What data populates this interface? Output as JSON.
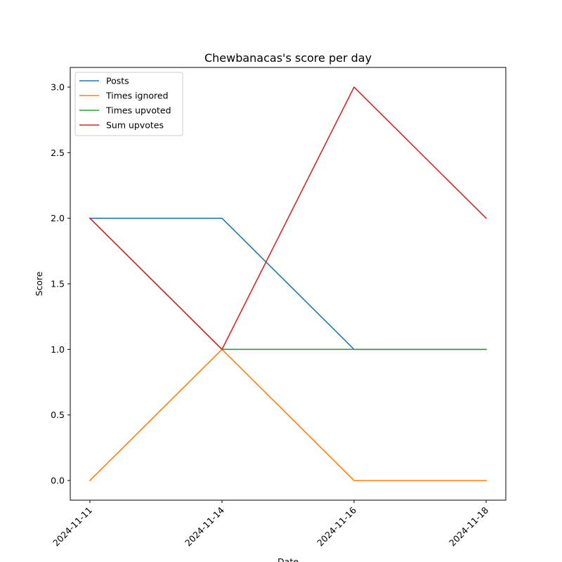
{
  "chart_data": {
    "type": "line",
    "title": "Chewbanacas's score per day",
    "xlabel": "Date",
    "ylabel": "Score",
    "categories": [
      "2024-11-11",
      "2024-11-14",
      "2024-11-16",
      "2024-11-18"
    ],
    "yticks": [
      "0.0",
      "0.5",
      "1.0",
      "1.5",
      "2.0",
      "2.5",
      "3.0"
    ],
    "ylim": [
      -0.15,
      3.15
    ],
    "grid": false,
    "legend_position": "upper-left",
    "series": [
      {
        "name": "Posts",
        "color": "#1f77b4",
        "values": [
          2,
          2,
          1,
          1
        ]
      },
      {
        "name": "Times ignored",
        "color": "#ff7f0e",
        "values": [
          0,
          1,
          0,
          0
        ]
      },
      {
        "name": "Times upvoted",
        "color": "#2ca02c",
        "values": [
          2,
          1,
          1,
          1
        ]
      },
      {
        "name": "Sum upvotes",
        "color": "#d62728",
        "values": [
          2,
          1,
          3,
          2
        ]
      }
    ]
  }
}
